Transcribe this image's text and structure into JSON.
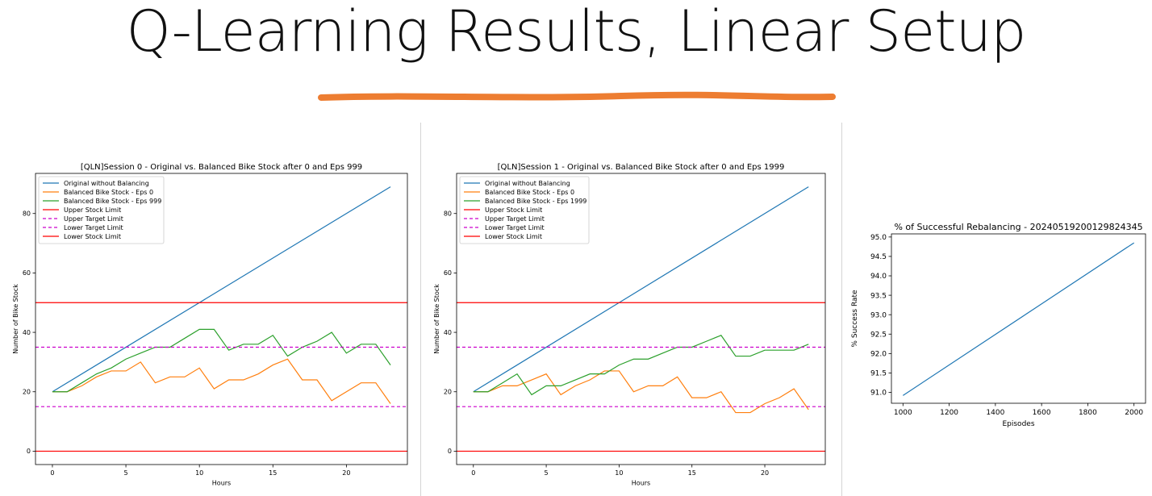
{
  "slide": {
    "title": "Q-Learning Results, Linear Setup",
    "accent_color": "#ED7D31"
  },
  "chart_data": [
    {
      "type": "line",
      "title": "[QLN]Session 0 - Original vs. Balanced Bike Stock after 0 and Eps 999",
      "xlabel": "Hours",
      "ylabel": "Number of Bike Stock",
      "xlim": [
        -1.15,
        24.15
      ],
      "ylim": [
        -4.5,
        93.5
      ],
      "xticks": [
        0,
        5,
        10,
        15,
        20
      ],
      "yticks": [
        0,
        20,
        40,
        60,
        80
      ],
      "legend_position": "upper left",
      "series": [
        {
          "name": "Original without Balancing",
          "color": "#1f77b4",
          "style": "solid",
          "x": [
            0,
            23
          ],
          "y": [
            20,
            89
          ]
        },
        {
          "name": "Balanced Bike Stock - Eps 0",
          "color": "#ff7f0e",
          "style": "solid",
          "x": [
            0,
            1,
            2,
            3,
            4,
            5,
            6,
            7,
            8,
            9,
            10,
            11,
            12,
            13,
            14,
            15,
            16,
            17,
            18,
            19,
            20,
            21,
            22,
            23
          ],
          "y": [
            20,
            20,
            22,
            25,
            27,
            27,
            30,
            23,
            25,
            25,
            28,
            21,
            24,
            24,
            26,
            29,
            31,
            24,
            24,
            17,
            20,
            23,
            23,
            16
          ]
        },
        {
          "name": "Balanced Bike Stock - Eps 999",
          "color": "#2ca02c",
          "style": "solid",
          "x": [
            0,
            1,
            2,
            3,
            4,
            5,
            6,
            7,
            8,
            9,
            10,
            11,
            12,
            13,
            14,
            15,
            16,
            17,
            18,
            19,
            20,
            21,
            22,
            23
          ],
          "y": [
            20,
            20,
            23,
            26,
            28,
            31,
            33,
            35,
            35,
            38,
            41,
            41,
            34,
            36,
            36,
            39,
            32,
            35,
            37,
            40,
            33,
            36,
            36,
            29
          ]
        },
        {
          "name": "Upper Stock Limit",
          "color": "#ff0000",
          "style": "solid",
          "hline": 50
        },
        {
          "name": "Upper Target Limit",
          "color": "#cc00cc",
          "style": "dashed",
          "hline": 35
        },
        {
          "name": "Lower Target Limit",
          "color": "#cc00cc",
          "style": "dashed",
          "hline": 15
        },
        {
          "name": "Lower Stock Limit",
          "color": "#ff0000",
          "style": "solid",
          "hline": 0
        }
      ]
    },
    {
      "type": "line",
      "title": "[QLN]Session 1 - Original vs. Balanced Bike Stock after 0 and Eps 1999",
      "xlabel": "Hours",
      "ylabel": "Number of Bike Stock",
      "xlim": [
        -1.15,
        24.15
      ],
      "ylim": [
        -4.5,
        93.5
      ],
      "xticks": [
        0,
        5,
        10,
        15,
        20
      ],
      "yticks": [
        0,
        20,
        40,
        60,
        80
      ],
      "legend_position": "upper left",
      "series": [
        {
          "name": "Original without Balancing",
          "color": "#1f77b4",
          "style": "solid",
          "x": [
            0,
            23
          ],
          "y": [
            20,
            89
          ]
        },
        {
          "name": "Balanced Bike Stock - Eps 0",
          "color": "#ff7f0e",
          "style": "solid",
          "x": [
            0,
            1,
            2,
            3,
            4,
            5,
            6,
            7,
            8,
            9,
            10,
            11,
            12,
            13,
            14,
            15,
            16,
            17,
            18,
            19,
            20,
            21,
            22,
            23
          ],
          "y": [
            20,
            20,
            22,
            22,
            24,
            26,
            19,
            22,
            24,
            27,
            27,
            20,
            22,
            22,
            25,
            18,
            18,
            20,
            13,
            13,
            16,
            18,
            21,
            14
          ]
        },
        {
          "name": "Balanced Bike Stock - Eps 1999",
          "color": "#2ca02c",
          "style": "solid",
          "x": [
            0,
            1,
            2,
            3,
            4,
            5,
            6,
            7,
            8,
            9,
            10,
            11,
            12,
            13,
            14,
            15,
            16,
            17,
            18,
            19,
            20,
            21,
            22,
            23
          ],
          "y": [
            20,
            20,
            23,
            26,
            19,
            22,
            22,
            24,
            26,
            26,
            29,
            31,
            31,
            33,
            35,
            35,
            37,
            39,
            32,
            32,
            34,
            34,
            34,
            36
          ]
        },
        {
          "name": "Upper Stock Limit",
          "color": "#ff0000",
          "style": "solid",
          "hline": 50
        },
        {
          "name": "Upper Target Limit",
          "color": "#cc00cc",
          "style": "dashed",
          "hline": 35
        },
        {
          "name": "Lower Target Limit",
          "color": "#cc00cc",
          "style": "dashed",
          "hline": 15
        },
        {
          "name": "Lower Stock Limit",
          "color": "#ff0000",
          "style": "solid",
          "hline": 0
        }
      ]
    },
    {
      "type": "line",
      "title": "% of Successful Rebalancing - 20240519200129824345",
      "xlabel": "Episodes",
      "ylabel": "% Success Rate",
      "xlim": [
        950,
        2050
      ],
      "ylim": [
        90.72,
        95.08
      ],
      "xticks": [
        1000,
        1200,
        1400,
        1600,
        1800,
        2000
      ],
      "yticks": [
        "91.0",
        "91.5",
        "92.0",
        "92.5",
        "93.0",
        "93.5",
        "94.0",
        "94.5",
        "95.0"
      ],
      "series": [
        {
          "name": "",
          "color": "#1f77b4",
          "style": "solid",
          "x": [
            1000,
            2000
          ],
          "y": [
            90.92,
            94.85
          ]
        }
      ]
    }
  ]
}
